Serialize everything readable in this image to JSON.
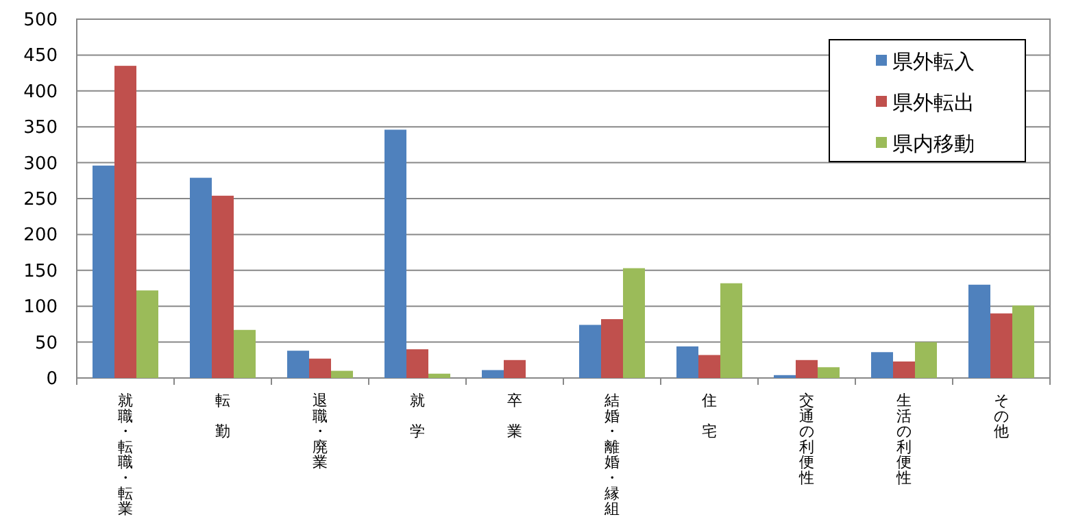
{
  "chart_data": {
    "type": "bar",
    "categories": [
      "就職・転職・転業",
      "転勤",
      "退職・廃業",
      "就学",
      "卒業",
      "結婚・離婚・縁組",
      "住宅",
      "交通の利便性",
      "生活の利便性",
      "その他"
    ],
    "series": [
      {
        "name": "県外転入",
        "color": "#4f81bd",
        "values": [
          296,
          279,
          38,
          346,
          11,
          74,
          44,
          4,
          36,
          130
        ]
      },
      {
        "name": "県外転出",
        "color": "#c0504d",
        "values": [
          435,
          254,
          27,
          40,
          25,
          82,
          32,
          25,
          23,
          90
        ]
      },
      {
        "name": "県内移動",
        "color": "#9bbb59",
        "values": [
          122,
          67,
          10,
          6,
          0,
          153,
          132,
          15,
          50,
          101
        ]
      }
    ],
    "ylim": [
      0,
      500
    ],
    "yticks": [
      0,
      50,
      100,
      150,
      200,
      250,
      300,
      350,
      400,
      450,
      500
    ],
    "grid": "y",
    "legend": "top right"
  }
}
